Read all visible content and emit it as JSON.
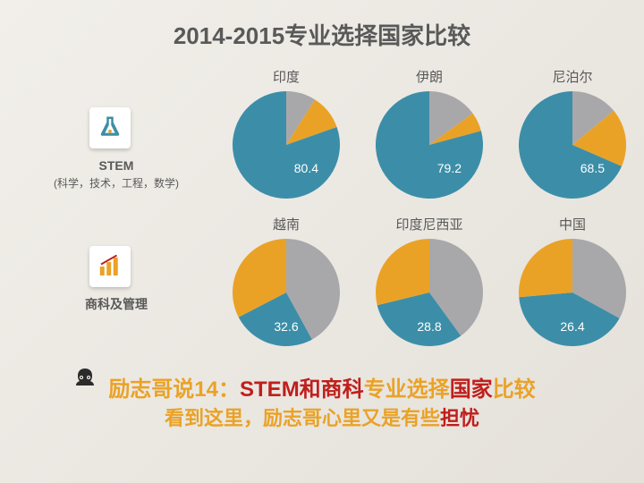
{
  "title": "2014-2015专业选择国家比较",
  "colors": {
    "teal": "#3c8ea8",
    "orange": "#eaa226",
    "gray": "#a8a8aa",
    "text": "#595959",
    "red": "#bf1f1d",
    "white": "#ffffff",
    "bg": "#ece8e1"
  },
  "fontsize": {
    "title": 26,
    "chart_label": 15,
    "pie_value": 14,
    "side_label": 14,
    "bottom1": 24,
    "bottom2": 22
  },
  "side_panels": [
    {
      "icon": "flask-icon",
      "title": "STEM",
      "subtitle": "(科学，技术，工程，数学)"
    },
    {
      "icon": "bar-chart-icon",
      "title": "商科及管理",
      "subtitle": ""
    }
  ],
  "rows": [
    {
      "value_color": "#ffffff",
      "value_pos": "bottom-right",
      "charts": [
        {
          "label": "印度",
          "display_value": "80.4",
          "slices": [
            {
              "color": "#a8a8aa",
              "value": 9
            },
            {
              "color": "#eaa226",
              "value": 10.6
            },
            {
              "color": "#3c8ea8",
              "value": 80.4
            }
          ]
        },
        {
          "label": "伊朗",
          "display_value": "79.2",
          "slices": [
            {
              "color": "#a8a8aa",
              "value": 15
            },
            {
              "color": "#eaa226",
              "value": 5.8
            },
            {
              "color": "#3c8ea8",
              "value": 79.2
            }
          ]
        },
        {
          "label": "尼泊尔",
          "display_value": "68.5",
          "slices": [
            {
              "color": "#a8a8aa",
              "value": 14
            },
            {
              "color": "#eaa226",
              "value": 17.5
            },
            {
              "color": "#3c8ea8",
              "value": 68.5
            }
          ]
        }
      ]
    },
    {
      "value_color": "#ffffff",
      "value_pos": "bottom-center",
      "charts": [
        {
          "label": "越南",
          "display_value": "32.6",
          "slices": [
            {
              "color": "#a8a8aa",
              "value": 42
            },
            {
              "color": "#3c8ea8",
              "value": 25.4
            },
            {
              "color": "#eaa226",
              "value": 32.6
            }
          ]
        },
        {
          "label": "印度尼西亚",
          "display_value": "28.8",
          "slices": [
            {
              "color": "#a8a8aa",
              "value": 40
            },
            {
              "color": "#3c8ea8",
              "value": 31.2
            },
            {
              "color": "#eaa226",
              "value": 28.8
            }
          ]
        },
        {
          "label": "中国",
          "display_value": "26.4",
          "slices": [
            {
              "color": "#a8a8aa",
              "value": 33
            },
            {
              "color": "#3c8ea8",
              "value": 40.6
            },
            {
              "color": "#eaa226",
              "value": 26.4
            }
          ]
        }
      ]
    }
  ],
  "bottom_line1": {
    "parts": [
      {
        "text": "励志哥说14：",
        "color": "#eaa226"
      },
      {
        "text": "STEM和商科",
        "color": "#bf1f1d"
      },
      {
        "text": "专业选择",
        "color": "#eaa226"
      },
      {
        "text": "国家",
        "color": "#bf1f1d"
      },
      {
        "text": "比较",
        "color": "#eaa226"
      }
    ]
  },
  "bottom_line2": {
    "parts": [
      {
        "text": "看到这里，励志哥心里又是有些",
        "color": "#eaa226"
      },
      {
        "text": "担忧",
        "color": "#bf1f1d"
      }
    ]
  }
}
